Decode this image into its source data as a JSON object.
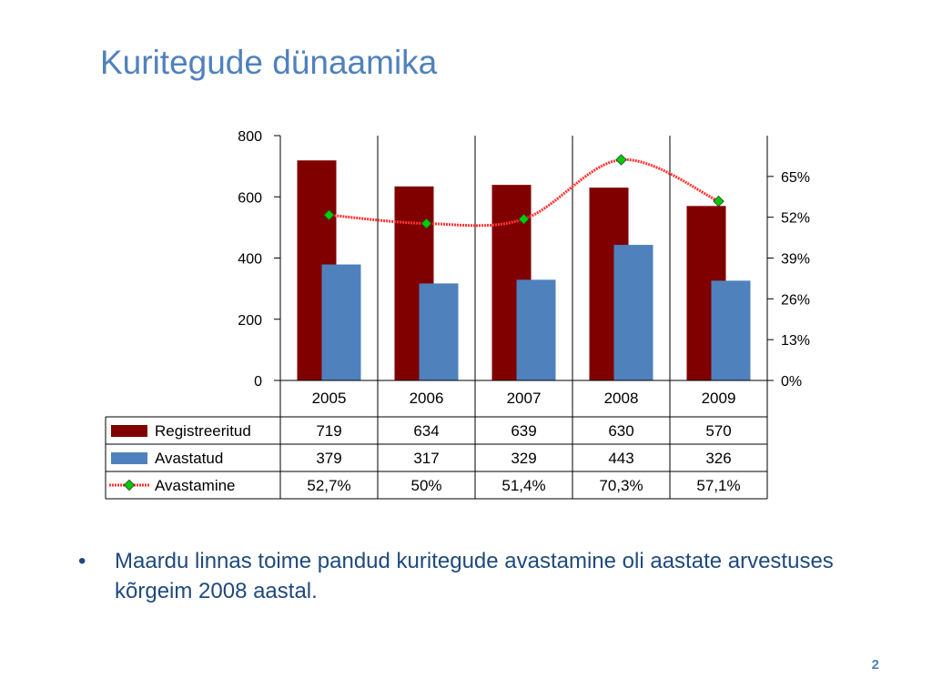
{
  "slide": {
    "title": "Kuritegude dünaamika",
    "bullet_symbol": "•",
    "bullet_text": "Maardu linnas toime pandud kuritegude avastamine oli aastate arvestuses kõrgeim 2008 aastal.",
    "page_number": "2"
  },
  "chart_data": {
    "type": "bar",
    "categories": [
      "2005",
      "2006",
      "2007",
      "2008",
      "2009"
    ],
    "series": [
      {
        "name": "Registreeritud",
        "type": "bar",
        "axis": "left",
        "color": "#800000",
        "values": [
          719,
          634,
          639,
          630,
          570
        ],
        "table_values": [
          "719",
          "634",
          "639",
          "630",
          "570"
        ]
      },
      {
        "name": "Avastatud",
        "type": "bar",
        "axis": "left",
        "color": "#4f81bd",
        "values": [
          379,
          317,
          329,
          443,
          326
        ],
        "table_values": [
          "379",
          "317",
          "329",
          "443",
          "326"
        ]
      },
      {
        "name": "Avastamine",
        "type": "line",
        "axis": "right",
        "color": "#ff3333",
        "marker_color": "#00cc00",
        "values": [
          52.7,
          50,
          51.4,
          70.3,
          57.1
        ],
        "table_values": [
          "52,7%",
          "50%",
          "51,4%",
          "70,3%",
          "57,1%"
        ]
      }
    ],
    "y_left": {
      "min": 0,
      "max": 800,
      "ticks": [
        {
          "value": 0,
          "label": "0"
        },
        {
          "value": 200,
          "label": "200"
        },
        {
          "value": 400,
          "label": "400"
        },
        {
          "value": 600,
          "label": "600"
        },
        {
          "value": 800,
          "label": "800"
        }
      ]
    },
    "y_right": {
      "min": 0,
      "max": 78,
      "ticks": [
        {
          "value": 0,
          "label": "0%"
        },
        {
          "value": 13,
          "label": "13%"
        },
        {
          "value": 26,
          "label": "26%"
        },
        {
          "value": 39,
          "label": "39%"
        },
        {
          "value": 52,
          "label": "52%"
        },
        {
          "value": 65,
          "label": "65%"
        }
      ]
    },
    "vertical_grid": true,
    "legend_placement": "data-table",
    "data_table": true
  }
}
